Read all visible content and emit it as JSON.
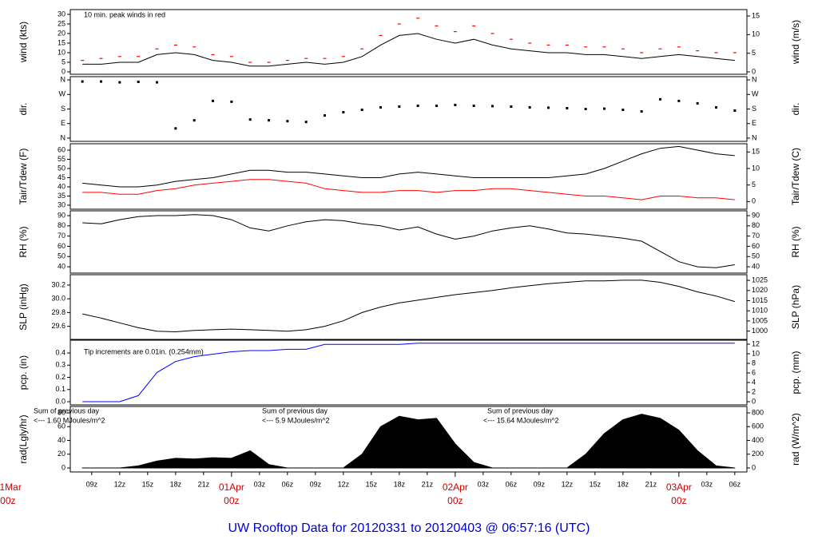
{
  "title": "UW Rooftop Data for 20120331  to  20120403 @ 06:57:16  (UTC)",
  "time_axis": {
    "xlim": [
      6.7,
      79.3
    ],
    "x": [
      8,
      10,
      12,
      14,
      16,
      18,
      20,
      22,
      24,
      26,
      28,
      30,
      32,
      34,
      36,
      38,
      40,
      42,
      44,
      46,
      48,
      50,
      52,
      54,
      56,
      58,
      60,
      62,
      64,
      66,
      68,
      70,
      72,
      74,
      76,
      78
    ],
    "xticks": [
      {
        "value": 9,
        "label": "09z"
      },
      {
        "value": 12,
        "label": "12z"
      },
      {
        "value": 15,
        "label": "15z"
      },
      {
        "value": 18,
        "label": "18z"
      },
      {
        "value": 21,
        "label": "21z"
      },
      {
        "value": 27,
        "label": "03z"
      },
      {
        "value": 30,
        "label": "06z"
      },
      {
        "value": 33,
        "label": "09z"
      },
      {
        "value": 36,
        "label": "12z"
      },
      {
        "value": 39,
        "label": "15z"
      },
      {
        "value": 42,
        "label": "18z"
      },
      {
        "value": 45,
        "label": "21z"
      },
      {
        "value": 51,
        "label": "03z"
      },
      {
        "value": 54,
        "label": "06z"
      },
      {
        "value": 57,
        "label": "09z"
      },
      {
        "value": 60,
        "label": "12z"
      },
      {
        "value": 63,
        "label": "15z"
      },
      {
        "value": 66,
        "label": "18z"
      },
      {
        "value": 69,
        "label": "21z"
      },
      {
        "value": 75,
        "label": "03z"
      },
      {
        "value": 78,
        "label": "06z"
      }
    ],
    "date_ticks": [
      {
        "value": 0,
        "label": "31Mar",
        "sub": "00z"
      },
      {
        "value": 24,
        "label": "01Apr",
        "sub": "00z"
      },
      {
        "value": 48,
        "label": "02Apr",
        "sub": "00z"
      },
      {
        "value": 72,
        "label": "03Apr",
        "sub": "00z"
      }
    ]
  },
  "chart_data": [
    {
      "type": "line",
      "ylabel": "wind (kts)",
      "y2label": "wind (m/s)",
      "ylim": [
        -1.25,
        32.5
      ],
      "yticks": [
        0,
        5,
        10,
        15,
        20,
        25,
        30
      ],
      "y2lim": [
        -0.64,
        16.72
      ],
      "y2ticks": [
        0,
        5,
        10,
        15
      ],
      "annotations": [
        "10 min. peak winds in red"
      ],
      "annotation_color": "#cc0000",
      "series": [
        {
          "color": "#000000",
          "values": [
            4,
            4,
            5,
            5,
            9,
            10,
            9,
            6,
            5,
            3,
            3,
            4,
            5,
            4,
            5,
            8,
            14,
            19,
            20,
            17,
            15,
            17,
            14,
            12,
            11,
            10,
            10,
            9,
            9,
            8,
            7,
            8,
            9,
            8,
            7,
            6
          ]
        },
        {
          "color": "#ff0000",
          "style": "dash",
          "values": [
            6,
            7,
            8,
            8,
            12,
            14,
            13,
            9,
            8,
            5,
            5,
            6,
            7,
            7,
            8,
            12,
            19,
            25,
            28,
            24,
            21,
            24,
            20,
            17,
            15,
            14,
            14,
            13,
            13,
            12,
            10,
            12,
            13,
            11,
            10,
            10
          ]
        }
      ]
    },
    {
      "type": "scatter",
      "ylabel": "dir.",
      "y2label": "dir.",
      "ylim": [
        -20,
        380
      ],
      "yticks": [
        {
          "value": 0,
          "label": "N"
        },
        {
          "value": 90,
          "label": "E"
        },
        {
          "value": 180,
          "label": "S"
        },
        {
          "value": 270,
          "label": "W"
        },
        {
          "value": 360,
          "label": "N"
        }
      ],
      "y2lim": [
        -20,
        380
      ],
      "y2ticks": [
        {
          "value": 0,
          "label": "N"
        },
        {
          "value": 90,
          "label": "E"
        },
        {
          "value": 180,
          "label": "S"
        },
        {
          "value": 270,
          "label": "W"
        },
        {
          "value": 360,
          "label": "N"
        }
      ],
      "series": [
        {
          "color": "#000000",
          "values": [
            350,
            350,
            345,
            348,
            345,
            60,
            110,
            230,
            225,
            115,
            110,
            105,
            100,
            140,
            160,
            175,
            190,
            195,
            200,
            200,
            205,
            200,
            198,
            195,
            190,
            188,
            185,
            180,
            182,
            175,
            165,
            240,
            230,
            215,
            190,
            170
          ]
        }
      ]
    },
    {
      "type": "line",
      "ylabel": "Tair/Tdew (F)",
      "y2label": "Tair/Tdew (C)",
      "ylim": [
        27.8,
        63.5
      ],
      "yticks": [
        30,
        35,
        40,
        45,
        50,
        55,
        60
      ],
      "y2lim": [
        -2.33,
        17.5
      ],
      "y2ticks": [
        0,
        5,
        10,
        15
      ],
      "series": [
        {
          "color": "#000000",
          "values": [
            42,
            41,
            40,
            40,
            41,
            43,
            44,
            45,
            47,
            49,
            49,
            48,
            48,
            47,
            46,
            45,
            45,
            47,
            48,
            47,
            46,
            45,
            45,
            45,
            45,
            45,
            46,
            47,
            50,
            54,
            58,
            61,
            62,
            60,
            58,
            57
          ]
        },
        {
          "color": "#ff0000",
          "values": [
            37,
            37,
            36,
            36,
            38,
            39,
            41,
            42,
            43,
            44,
            44,
            43,
            42,
            39,
            38,
            37,
            37,
            38,
            38,
            37,
            38,
            38,
            39,
            39,
            38,
            37,
            36,
            35,
            35,
            34,
            33,
            35,
            35,
            34,
            34,
            33
          ]
        }
      ]
    },
    {
      "type": "line",
      "ylabel": "RH (%)",
      "y2label": "RH (%)",
      "ylim": [
        33.8,
        94.7
      ],
      "yticks": [
        40,
        50,
        60,
        70,
        80,
        90
      ],
      "y2lim": [
        33.8,
        94.7
      ],
      "y2ticks": [
        40,
        50,
        60,
        70,
        80,
        90
      ],
      "series": [
        {
          "color": "#000000",
          "values": [
            83,
            82,
            86,
            89,
            90,
            90,
            91,
            90,
            86,
            78,
            75,
            80,
            84,
            86,
            85,
            82,
            80,
            76,
            79,
            72,
            67,
            70,
            75,
            78,
            80,
            77,
            73,
            72,
            70,
            68,
            65,
            55,
            45,
            40,
            39,
            42
          ]
        }
      ]
    },
    {
      "type": "line",
      "ylabel": "SLP (inHg)",
      "y2label": "SLP (hPa)",
      "ylim": [
        29.41,
        30.35
      ],
      "yticks": [
        29.6,
        29.8,
        {
          "value": 30,
          "label": "30.0"
        },
        30.2
      ],
      "y2lim": [
        995.9,
        1027.8
      ],
      "y2ticks": [
        1000,
        1005,
        1010,
        1015,
        1020,
        1025
      ],
      "series": [
        {
          "color": "#000000",
          "values": [
            29.78,
            29.72,
            29.65,
            29.58,
            29.53,
            29.52,
            29.54,
            29.55,
            29.56,
            29.55,
            29.54,
            29.53,
            29.55,
            29.6,
            29.68,
            29.8,
            29.88,
            29.94,
            29.98,
            30.02,
            30.06,
            30.09,
            30.12,
            30.16,
            30.19,
            30.22,
            30.24,
            30.26,
            30.26,
            30.27,
            30.27,
            30.24,
            30.18,
            30.1,
            30.04,
            29.96
          ]
        }
      ]
    },
    {
      "type": "line",
      "ylabel": "pcp. (in)",
      "y2label": "pcp. (mm)",
      "ylim": [
        -0.026,
        0.505
      ],
      "yticks": [
        {
          "value": 0,
          "label": "0.0"
        },
        0.1,
        0.2,
        0.3,
        0.4
      ],
      "y2lim": [
        -0.66,
        12.83
      ],
      "y2ticks": [
        0,
        2,
        4,
        6,
        8,
        10,
        12
      ],
      "annotations": [
        "Tip increments are 0.01in. (0.254mm)"
      ],
      "annotation_color": "#0000cc",
      "series": [
        {
          "color": "#0000ff",
          "values": [
            0,
            0,
            0,
            0.05,
            0.24,
            0.33,
            0.37,
            0.39,
            0.41,
            0.42,
            0.42,
            0.43,
            0.43,
            0.47,
            0.47,
            0.47,
            0.47,
            0.47,
            0.48,
            0.48,
            0.48,
            0.48,
            0.48,
            0.48,
            0.48,
            0.48,
            0.48,
            0.48,
            0.48,
            0.48,
            0.48,
            0.48,
            0.48,
            0.48,
            0.48,
            0.48
          ]
        }
      ]
    },
    {
      "type": "area",
      "ylabel": "rad(Lgly/hr)",
      "y2label": "rad (W/m^2)",
      "ylim": [
        -5.8,
        89.3
      ],
      "yticks": [
        0,
        20,
        40,
        60,
        80
      ],
      "y2lim": [
        -58,
        893
      ],
      "y2ticks": [
        0,
        200,
        400,
        600,
        800
      ],
      "annotations": [
        "Sum of previous day",
        "<--- 1.60 MJoules/m^2",
        "Sum of previous day",
        "<--- 5.9 MJoules/m^2",
        "Sum of previous day",
        "<--- 15.64 MJoules/m^2"
      ],
      "annotation_color": "#9900cc",
      "series": [
        {
          "color": "#000000",
          "values": [
            0,
            0,
            0,
            3,
            10,
            14,
            13,
            15,
            14,
            25,
            5,
            0,
            0,
            0,
            0,
            20,
            60,
            75,
            70,
            72,
            35,
            8,
            0,
            0,
            0,
            0,
            0,
            20,
            50,
            70,
            78,
            72,
            55,
            25,
            3,
            0
          ]
        }
      ]
    }
  ]
}
